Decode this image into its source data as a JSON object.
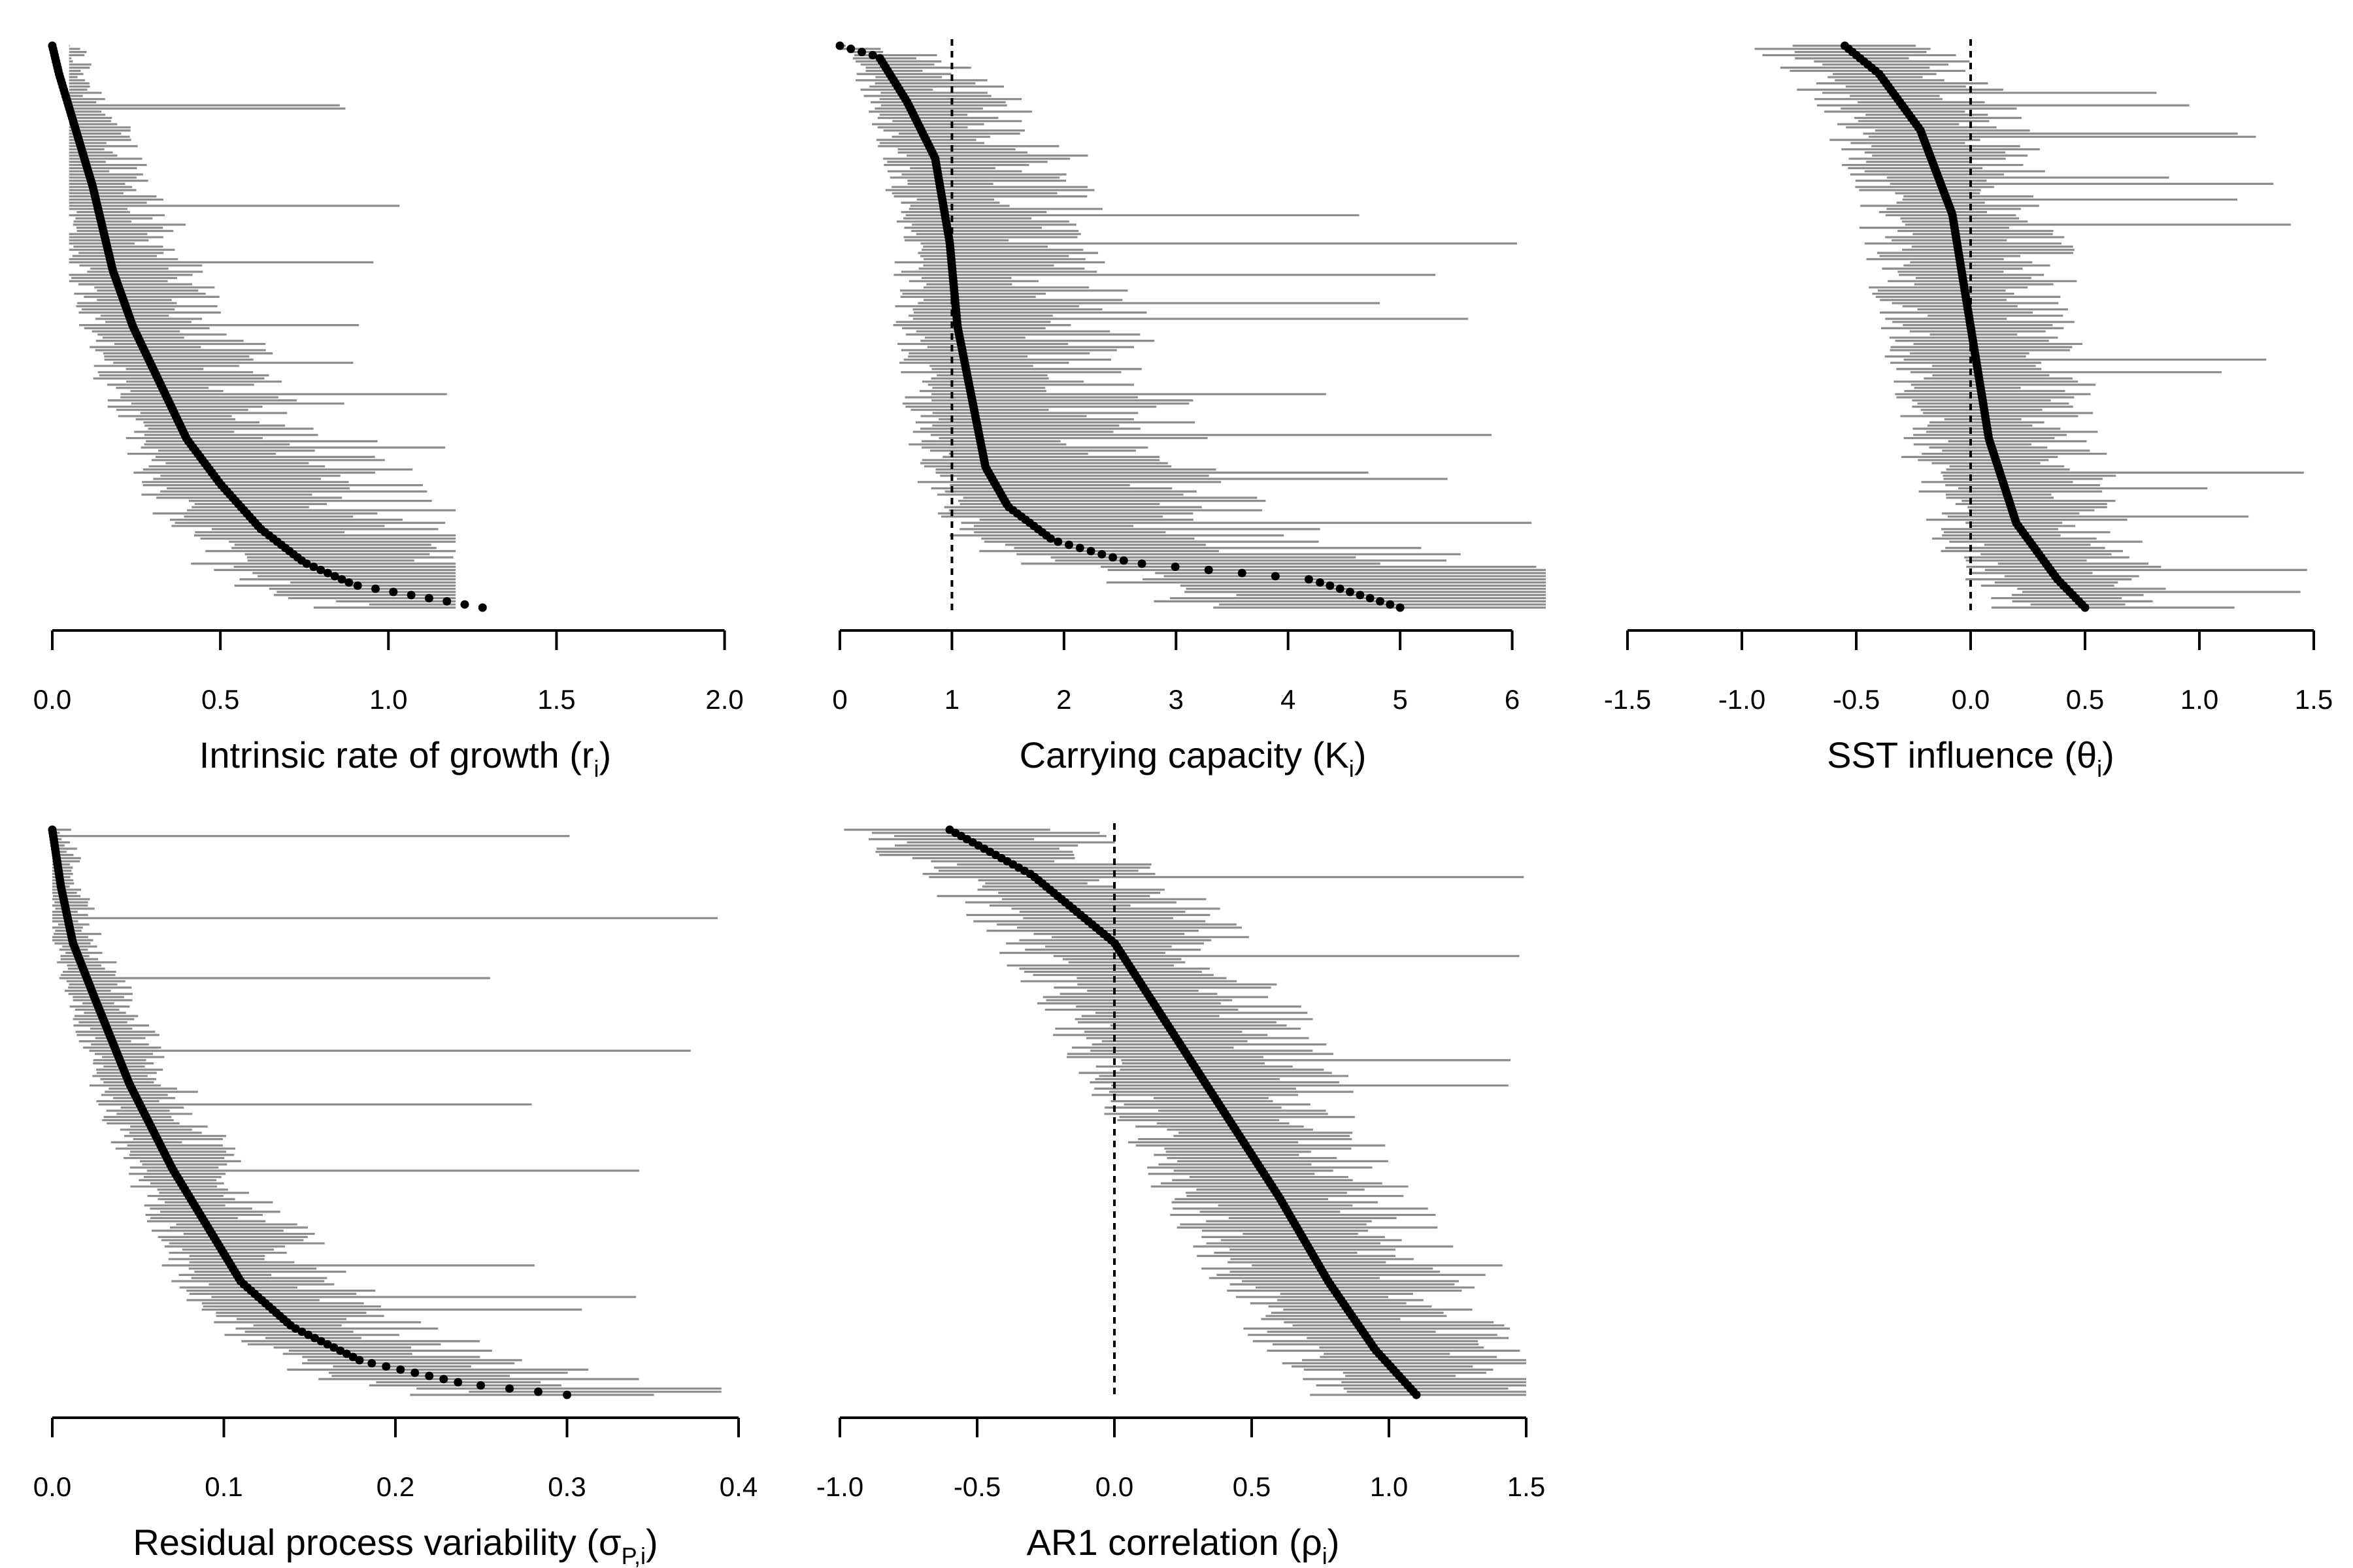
{
  "chart_data": [
    {
      "type": "scatter",
      "panel": "intrinsic-rate-of-growth",
      "xlabel_main": "Intrinsic rate of growth (r",
      "xlabel_sub": "i",
      "xlabel_end": ")",
      "xlim": [
        0,
        2.1
      ],
      "xticks": [
        "0.0",
        "0.5",
        "1.0",
        "1.5",
        "2.0"
      ],
      "xtick_values": [
        0,
        0.5,
        1.0,
        1.5,
        2.0
      ],
      "ref_line": null,
      "estimate_profile": [
        [
          0,
          0.0
        ],
        [
          0.05,
          0.02
        ],
        [
          0.15,
          0.07
        ],
        [
          0.25,
          0.12
        ],
        [
          0.4,
          0.18
        ],
        [
          0.5,
          0.24
        ],
        [
          0.6,
          0.32
        ],
        [
          0.7,
          0.4
        ],
        [
          0.78,
          0.5
        ],
        [
          0.86,
          0.62
        ],
        [
          0.92,
          0.75
        ],
        [
          0.96,
          0.9
        ],
        [
          1.0,
          1.28
        ]
      ],
      "interval_width": {
        "lower_frac": 0.25,
        "upper_frac": 0.6,
        "base": 0.06
      },
      "whisker_caps": [
        0.05,
        1.2
      ],
      "n_species": 180
    },
    {
      "type": "scatter",
      "panel": "carrying-capacity",
      "xlabel_main": "Carrying capacity (K",
      "xlabel_sub": "i",
      "xlabel_end": ")",
      "xlim": [
        0,
        6.3
      ],
      "xticks": [
        "0",
        "1",
        "2",
        "3",
        "4",
        "5",
        "6"
      ],
      "xtick_values": [
        0,
        1,
        2,
        3,
        4,
        5,
        6
      ],
      "ref_line": 1,
      "estimate_profile": [
        [
          0,
          0.0
        ],
        [
          0.02,
          0.35
        ],
        [
          0.1,
          0.6
        ],
        [
          0.2,
          0.85
        ],
        [
          0.35,
          0.98
        ],
        [
          0.5,
          1.05
        ],
        [
          0.65,
          1.2
        ],
        [
          0.75,
          1.3
        ],
        [
          0.82,
          1.5
        ],
        [
          0.88,
          1.9
        ],
        [
          0.92,
          2.6
        ],
        [
          0.95,
          4.2
        ],
        [
          1.0,
          5.0
        ]
      ],
      "interval_width": {
        "lower_frac": 0.3,
        "upper_frac": 0.9,
        "base": 0.1
      },
      "whisker_caps": [
        0.0,
        6.3
      ],
      "n_species": 180
    },
    {
      "type": "scatter",
      "panel": "sst-influence",
      "xlabel_main": "SST influence (θ",
      "xlabel_sub": "i",
      "xlabel_end": ")",
      "xlim": [
        -1.5,
        1.5
      ],
      "xticks": [
        "-1.5",
        "-1.0",
        "-0.5",
        "0.0",
        "0.5",
        "1.0",
        "1.5"
      ],
      "xtick_values": [
        -1.5,
        -1.0,
        -0.5,
        0.0,
        0.5,
        1.0,
        1.5
      ],
      "ref_line": 0,
      "estimate_profile": [
        [
          0,
          -0.55
        ],
        [
          0.05,
          -0.4
        ],
        [
          0.15,
          -0.22
        ],
        [
          0.3,
          -0.08
        ],
        [
          0.5,
          0.0
        ],
        [
          0.7,
          0.08
        ],
        [
          0.85,
          0.2
        ],
        [
          0.95,
          0.38
        ],
        [
          1.0,
          0.5
        ]
      ],
      "interval_width": {
        "lower_frac": 0.0,
        "upper_frac": 0.0,
        "base": 0.3
      },
      "whisker_caps": [
        -1.5,
        1.5
      ],
      "n_species": 180
    },
    {
      "type": "scatter",
      "panel": "residual-process-variability",
      "xlabel_main": "Residual process variability (σ",
      "xlabel_sub": "P,i",
      "xlabel_end": ")",
      "xlim": [
        0,
        0.4
      ],
      "xticks": [
        "0.0",
        "0.1",
        "0.2",
        "0.3",
        "0.4"
      ],
      "xtick_values": [
        0,
        0.1,
        0.2,
        0.3,
        0.4
      ],
      "ref_line": null,
      "estimate_profile": [
        [
          0,
          0.0
        ],
        [
          0.1,
          0.005
        ],
        [
          0.2,
          0.012
        ],
        [
          0.3,
          0.025
        ],
        [
          0.45,
          0.045
        ],
        [
          0.6,
          0.07
        ],
        [
          0.7,
          0.09
        ],
        [
          0.8,
          0.11
        ],
        [
          0.88,
          0.14
        ],
        [
          0.94,
          0.18
        ],
        [
          0.98,
          0.24
        ],
        [
          1.0,
          0.3
        ]
      ],
      "interval_width": {
        "lower_frac": 0.2,
        "upper_frac": 0.3,
        "base": 0.008
      },
      "whisker_caps": [
        0.0,
        0.39
      ],
      "n_species": 180
    },
    {
      "type": "scatter",
      "panel": "ar1-correlation",
      "xlabel_main": "AR1 correlation (ρ",
      "xlabel_sub": "i",
      "xlabel_end": ")",
      "xlim": [
        -1.0,
        1.5
      ],
      "xticks": [
        "-1.0",
        "-0.5",
        "0.0",
        "0.5",
        "1.0",
        "1.5"
      ],
      "xtick_values": [
        -1.0,
        -0.5,
        0.0,
        0.5,
        1.0,
        1.5
      ],
      "ref_line": 0,
      "estimate_profile": [
        [
          0,
          -0.6
        ],
        [
          0.08,
          -0.3
        ],
        [
          0.2,
          0.0
        ],
        [
          0.35,
          0.2
        ],
        [
          0.5,
          0.4
        ],
        [
          0.65,
          0.6
        ],
        [
          0.8,
          0.78
        ],
        [
          0.92,
          0.95
        ],
        [
          1.0,
          1.1
        ]
      ],
      "interval_width": {
        "lower_frac": 0.0,
        "upper_frac": 0.0,
        "base": 0.32
      },
      "whisker_caps": [
        -1.0,
        1.5
      ],
      "n_species": 180
    }
  ],
  "colors": {
    "interval": "#8c8c8c",
    "point": "#000000",
    "axis": "#000000",
    "ref_line": "#000000"
  }
}
